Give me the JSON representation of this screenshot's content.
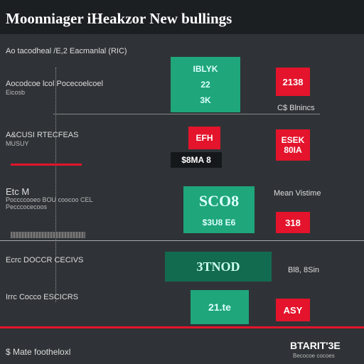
{
  "header": {
    "title": "Moonniager iHeakzor New bullings"
  },
  "subtitle": "Ao tacodheal /E,2 Eacmanlal (RIC)",
  "rows": [
    {
      "label": "Aocodcoe lcol Pocecoelcoel",
      "sublabel": "Eicosb",
      "green": [
        "IBLYK",
        "22",
        "3K"
      ],
      "red": "2138",
      "note": "C$ Blnincs"
    },
    {
      "label": "A&CUSI RTECFEAS",
      "sublabel": "MUSUY",
      "red_small": "EFH",
      "dark": "$8MA 8",
      "red": "ESEK 80IA"
    },
    {
      "label": "Etc M",
      "sublabel": "Poccccooeo BOU coocoo CEL Pecccocecoos",
      "green": [
        "SCO8",
        "$3U8 E6"
      ],
      "note": "Mean Vistime",
      "red": "318"
    },
    {
      "label": "Ecrc DOCCR CECIVS",
      "dark": "3TNOD",
      "note": "Bl8, 8Sin"
    },
    {
      "label": "Irrc Cocco ESCICRS",
      "green": [
        "21.te"
      ],
      "red": "ASY"
    }
  ],
  "footer": {
    "left": "$ Mate footheloxl",
    "right": "BTARIT'3E",
    "right_small": "Becocoe cocoes"
  }
}
